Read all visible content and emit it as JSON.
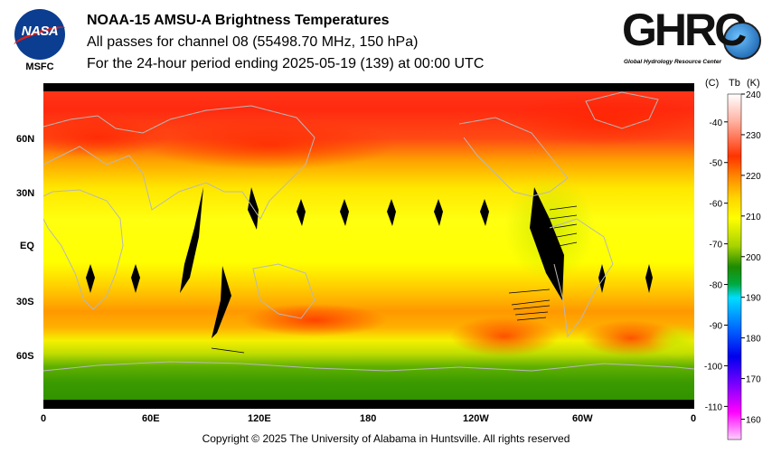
{
  "header": {
    "title": "NOAA-15 AMSU-A Brightness Temperatures",
    "line2": "All passes for channel 08 (55498.70 MHz, 150 hPa)",
    "line3": "For the 24-hour period ending 2025-05-19 (139) at 00:00 UTC"
  },
  "logos": {
    "nasa": {
      "text": "NASA",
      "sub": "MSFC"
    },
    "ghrc": {
      "text": "GHRC",
      "sub": "Global Hydrology Resource Center"
    }
  },
  "map": {
    "lat_labels": [
      "60N",
      "30N",
      "EQ",
      "30S",
      "60S"
    ],
    "lon_labels": [
      "0",
      "60E",
      "120E",
      "180",
      "120W",
      "60W",
      "0"
    ]
  },
  "colorbar": {
    "celsius_unit": "(C)",
    "tb_unit": "Tb",
    "kelvin_unit": "(K)",
    "celsius_ticks": [
      "-40",
      "-50",
      "-60",
      "-70",
      "-80",
      "-90",
      "-100",
      "-110"
    ],
    "kelvin_ticks": [
      "240",
      "230",
      "220",
      "210",
      "200",
      "190",
      "180",
      "170",
      "160"
    ],
    "range_k": [
      155,
      240
    ],
    "colors": [
      "#ffffff",
      "#ff3300",
      "#ffd400",
      "#ffff00",
      "#1e8a00",
      "#00ddff",
      "#0000ff",
      "#ff00ff",
      "#ffd0ff"
    ]
  },
  "footer": {
    "copyright": "Copyright © 2025 The University of Alabama in Huntsville.  All rights reserved"
  }
}
